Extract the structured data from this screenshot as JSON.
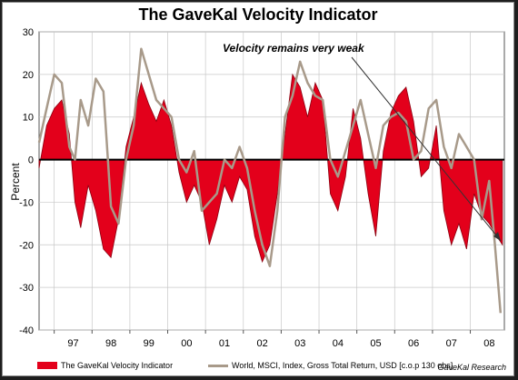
{
  "chart_data": {
    "type": "area",
    "title": "The GaveKal Velocity Indicator",
    "ylabel": "Percent",
    "xlabel": "",
    "ylim": [
      -40,
      30
    ],
    "y_ticks": [
      30,
      20,
      10,
      0,
      -10,
      -20,
      -30,
      -40
    ],
    "x_tick_labels": [
      "97",
      "98",
      "99",
      "00",
      "01",
      "02",
      "03",
      "04",
      "05",
      "06",
      "07",
      "08"
    ],
    "x_range": [
      1996.6,
      2008.9
    ],
    "grid": true,
    "legend_position": "bottom",
    "annotation": "Velocity remains very weak",
    "source": "GaveKal Research",
    "colors": {
      "velocity": "#e3001b",
      "velocity_dark": "#8b0010",
      "world": "#a89a8a",
      "zero": "#000000",
      "grid": "#c8c8c8"
    },
    "series": [
      {
        "name": "The GaveKal Velocity Indicator",
        "x": [
          1996.6,
          1996.8,
          1997.0,
          1997.2,
          1997.4,
          1997.55,
          1997.7,
          1997.9,
          1998.1,
          1998.3,
          1998.5,
          1998.7,
          1998.9,
          1999.1,
          1999.3,
          1999.5,
          1999.7,
          1999.9,
          2000.1,
          2000.3,
          2000.5,
          2000.7,
          2000.9,
          2001.1,
          2001.3,
          2001.5,
          2001.7,
          2001.9,
          2002.1,
          2002.3,
          2002.5,
          2002.7,
          2002.9,
          2003.1,
          2003.3,
          2003.5,
          2003.7,
          2003.9,
          2004.1,
          2004.3,
          2004.5,
          2004.7,
          2004.9,
          2005.1,
          2005.3,
          2005.5,
          2005.7,
          2005.9,
          2006.1,
          2006.3,
          2006.5,
          2006.7,
          2006.9,
          2007.1,
          2007.3,
          2007.5,
          2007.7,
          2007.9,
          2008.1,
          2008.3,
          2008.5,
          2008.7,
          2008.85
        ],
        "values": [
          -2,
          8,
          12,
          14,
          6,
          -10,
          -16,
          -6,
          -12,
          -21,
          -23,
          -14,
          3,
          10,
          18,
          13,
          9,
          14,
          8,
          -3,
          -10,
          -6,
          -10,
          -20,
          -14,
          -6,
          -10,
          -4,
          -7,
          -18,
          -24,
          -20,
          -8,
          6,
          20,
          17,
          10,
          18,
          14,
          -8,
          -12,
          -4,
          12,
          5,
          -8,
          -18,
          2,
          11,
          15,
          17,
          9,
          -4,
          -2,
          8,
          -12,
          -20,
          -15,
          -21,
          -8,
          -13,
          -15,
          -18,
          -20
        ]
      },
      {
        "name": "World, MSCI, Index, Gross Total Return, USD [c.o.p 130 obs]",
        "x": [
          1996.6,
          1996.8,
          1997.0,
          1997.2,
          1997.4,
          1997.55,
          1997.7,
          1997.9,
          1998.1,
          1998.3,
          1998.5,
          1998.7,
          1998.9,
          1999.1,
          1999.3,
          1999.5,
          1999.7,
          1999.9,
          2000.1,
          2000.3,
          2000.5,
          2000.7,
          2000.9,
          2001.1,
          2001.3,
          2001.5,
          2001.7,
          2001.9,
          2002.1,
          2002.3,
          2002.5,
          2002.7,
          2002.9,
          2003.1,
          2003.3,
          2003.5,
          2003.7,
          2003.9,
          2004.1,
          2004.3,
          2004.5,
          2004.7,
          2004.9,
          2005.1,
          2005.3,
          2005.5,
          2005.7,
          2005.9,
          2006.1,
          2006.3,
          2006.5,
          2006.7,
          2006.9,
          2007.1,
          2007.3,
          2007.5,
          2007.7,
          2007.9,
          2008.1,
          2008.3,
          2008.5,
          2008.65,
          2008.8
        ],
        "values": [
          4,
          12,
          20,
          18,
          3,
          0,
          14,
          8,
          19,
          16,
          -11,
          -15,
          0,
          8,
          26,
          20,
          14,
          12,
          10,
          0,
          -3,
          2,
          -12,
          -10,
          -8,
          0,
          -2,
          3,
          -2,
          -12,
          -20,
          -25,
          -12,
          10,
          15,
          23,
          18,
          15,
          14,
          0,
          -4,
          2,
          8,
          14,
          6,
          -2,
          8,
          10,
          11,
          9,
          0,
          2,
          12,
          14,
          3,
          -2,
          6,
          3,
          0,
          -14,
          -5,
          -20,
          -36
        ]
      }
    ]
  }
}
